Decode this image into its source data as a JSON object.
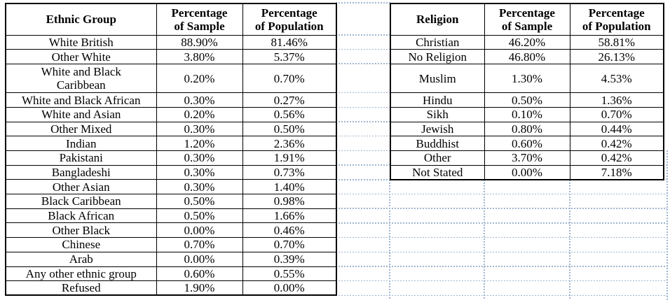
{
  "sheet": {
    "tables": [
      {
        "id": "ethnic",
        "headers": [
          "Ethnic Group",
          "Percentage\nof Sample",
          "Percentage\nof Population"
        ],
        "rows": [
          {
            "cells": [
              "White British",
              "88.90%",
              "81.46%"
            ]
          },
          {
            "cells": [
              "Other White",
              "3.80%",
              "5.37%"
            ]
          },
          {
            "cells": [
              "White and Black\nCaribbean",
              "0.20%",
              "0.70%"
            ],
            "tall": true
          },
          {
            "cells": [
              "White and Black African",
              "0.30%",
              "0.27%"
            ]
          },
          {
            "cells": [
              "White and Asian",
              "0.20%",
              "0.56%"
            ]
          },
          {
            "cells": [
              "Other Mixed",
              "0.30%",
              "0.50%"
            ]
          },
          {
            "cells": [
              "Indian",
              "1.20%",
              "2.36%"
            ]
          },
          {
            "cells": [
              "Pakistani",
              "0.30%",
              "1.91%"
            ]
          },
          {
            "cells": [
              "Bangladeshi",
              "0.30%",
              "0.73%"
            ]
          },
          {
            "cells": [
              "Other Asian",
              "0.30%",
              "1.40%"
            ]
          },
          {
            "cells": [
              "Black Caribbean",
              "0.50%",
              "0.98%"
            ]
          },
          {
            "cells": [
              "Black African",
              "0.50%",
              "1.66%"
            ]
          },
          {
            "cells": [
              "Other Black",
              "0.00%",
              "0.46%"
            ]
          },
          {
            "cells": [
              "Chinese",
              "0.70%",
              "0.70%"
            ]
          },
          {
            "cells": [
              "Arab",
              "0.00%",
              "0.39%"
            ]
          },
          {
            "cells": [
              "Any other ethnic group",
              "0.60%",
              "0.55%"
            ]
          },
          {
            "cells": [
              "Refused",
              "1.90%",
              "0.00%"
            ]
          }
        ]
      },
      {
        "id": "religion",
        "headers": [
          "Religion",
          "Percentage\nof Sample",
          "Percentage\nof Population"
        ],
        "rows": [
          {
            "cells": [
              "Christian",
              "46.20%",
              "58.81%"
            ]
          },
          {
            "cells": [
              "No Religion",
              "46.80%",
              "26.13%"
            ]
          },
          {
            "cells": [
              "Muslim",
              "1.30%",
              "4.53%"
            ],
            "tall": true
          },
          {
            "cells": [
              "Hindu",
              "0.50%",
              "1.36%"
            ]
          },
          {
            "cells": [
              "Sikh",
              "0.10%",
              "0.70%"
            ]
          },
          {
            "cells": [
              "Jewish",
              "0.80%",
              "0.44%"
            ]
          },
          {
            "cells": [
              "Buddhist",
              "0.60%",
              "0.42%"
            ]
          },
          {
            "cells": [
              "Other",
              "3.70%",
              "0.42%"
            ]
          },
          {
            "cells": [
              "Not Stated",
              "0.00%",
              "7.18%"
            ]
          }
        ]
      }
    ]
  },
  "colors": {
    "table_border": "#000000",
    "text": "#000000",
    "gridline": "#9fb6cf",
    "background": "#ffffff"
  }
}
